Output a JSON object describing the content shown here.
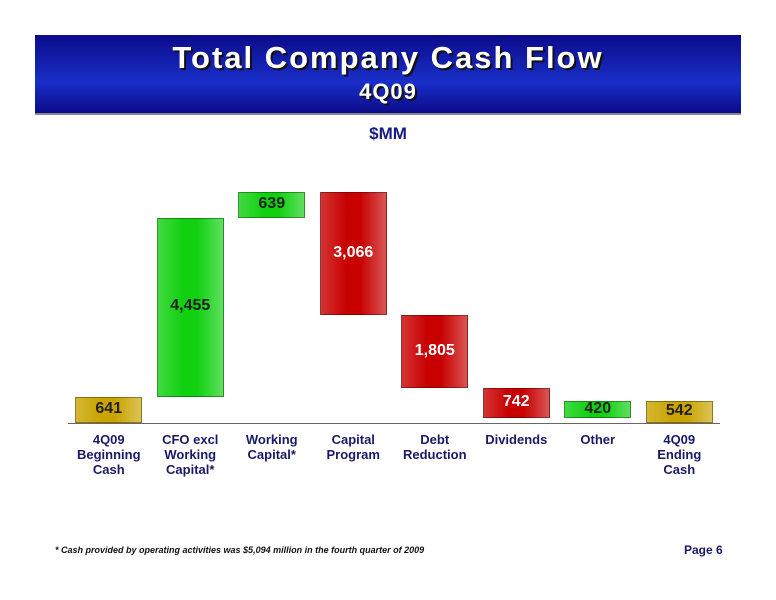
{
  "chart_data": {
    "type": "waterfall",
    "title": "Total Company Cash Flow",
    "subtitle": "4Q09",
    "unit_label": "$MM",
    "categories": [
      "4Q09 Beginning Cash",
      "CFO excl Working Capital*",
      "Working Capital*",
      "Capital Program",
      "Debt Reduction",
      "Dividends",
      "Other",
      "4Q09 Ending Cash"
    ],
    "values": [
      641,
      4455,
      639,
      -3066,
      -1805,
      -742,
      420,
      542
    ],
    "value_labels": [
      "641",
      "4,455",
      "639",
      "3,066",
      "1,805",
      "742",
      "420",
      "542"
    ],
    "measures": [
      "total",
      "relative",
      "relative",
      "relative",
      "relative",
      "relative",
      "relative",
      "total"
    ],
    "colors": {
      "total": "#c9a400",
      "increase": "#10d010",
      "decrease": "#c80000"
    },
    "footnote": "* Cash provided by operating activities was $5,094 million in the fourth quarter of 2009",
    "page": "Page 6"
  }
}
